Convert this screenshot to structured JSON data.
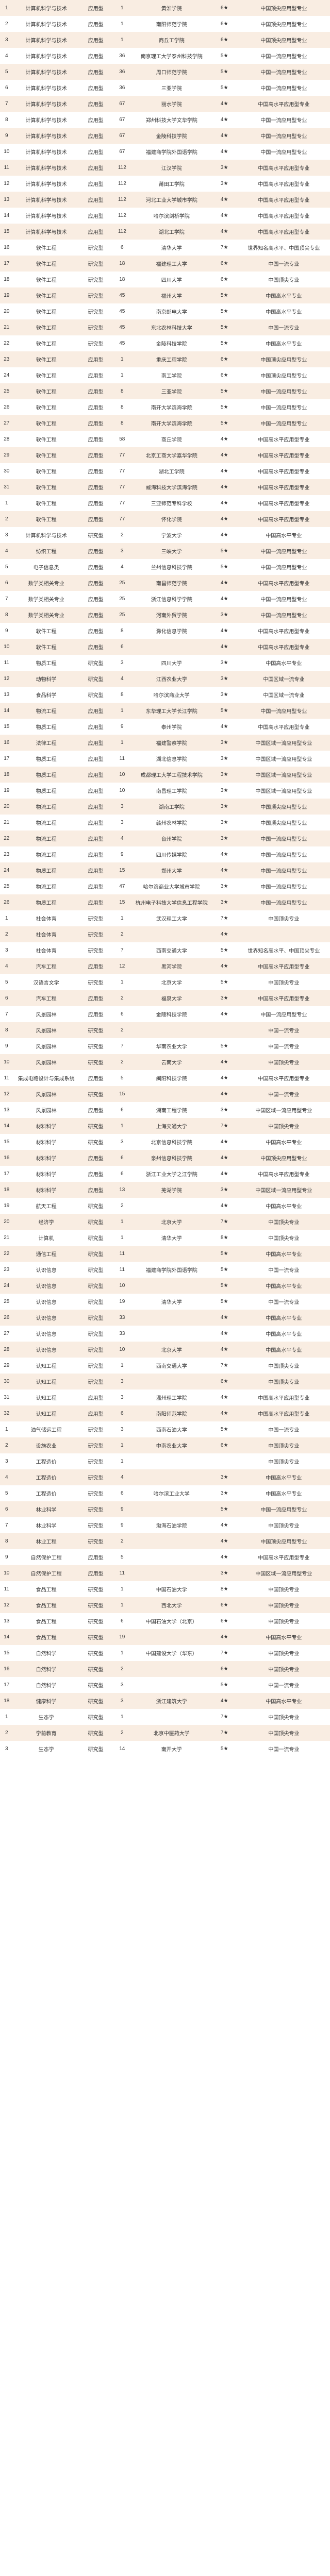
{
  "columns": [
    "idx",
    "major",
    "level",
    "rank",
    "school",
    "grade",
    "tier"
  ],
  "rows": [
    [
      "1",
      "计算机科学与技术",
      "应用型",
      "1",
      "黄淮学院",
      "6★",
      "中国顶尖应用型专业"
    ],
    [
      "2",
      "计算机科学与技术",
      "应用型",
      "1",
      "南阳师范学院",
      "6★",
      "中国顶尖应用型专业"
    ],
    [
      "3",
      "计算机科学与技术",
      "应用型",
      "1",
      "商丘工学院",
      "6★",
      "中国顶尖应用型专业"
    ],
    [
      "4",
      "计算机科学与技术",
      "应用型",
      "36",
      "南京理工大学泰州科技学院",
      "5★",
      "中国一流应用型专业"
    ],
    [
      "5",
      "计算机科学与技术",
      "应用型",
      "36",
      "周口师范学院",
      "5★",
      "中国一流应用型专业"
    ],
    [
      "6",
      "计算机科学与技术",
      "应用型",
      "36",
      "三亚学院",
      "5★",
      "中国一流应用型专业"
    ],
    [
      "7",
      "计算机科学与技术",
      "应用型",
      "67",
      "丽水学院",
      "4★",
      "中国高水平应用型专业"
    ],
    [
      "8",
      "计算机科学与技术",
      "应用型",
      "67",
      "郑州科技大学文华学院",
      "4★",
      "中国一流应用型专业"
    ],
    [
      "9",
      "计算机科学与技术",
      "应用型",
      "67",
      "金陵科技学院",
      "4★",
      "中国一流应用型专业"
    ],
    [
      "10",
      "计算机科学与技术",
      "应用型",
      "67",
      "福建商学院外国语学院",
      "4★",
      "中国一流应用型专业"
    ],
    [
      "11",
      "计算机科学与技术",
      "应用型",
      "112",
      "江汉学院",
      "3★",
      "中国高水平应用型专业"
    ],
    [
      "12",
      "计算机科学与技术",
      "应用型",
      "112",
      "莆田工学院",
      "3★",
      "中国高水平应用型专业"
    ],
    [
      "13",
      "计算机科学与技术",
      "应用型",
      "112",
      "河北工业大学城市学院",
      "4★",
      "中国高水平应用型专业"
    ],
    [
      "14",
      "计算机科学与技术",
      "应用型",
      "112",
      "哈尔滨剑桥学院",
      "4★",
      "中国高水平应用型专业"
    ],
    [
      "15",
      "计算机科学与技术",
      "应用型",
      "112",
      "湖北工学院",
      "4★",
      "中国高水平应用型专业"
    ],
    [
      "16",
      "软件工程",
      "研究型",
      "6",
      "清华大学",
      "7★",
      "世界知名高水平、中国顶尖专业"
    ],
    [
      "17",
      "软件工程",
      "研究型",
      "18",
      "福建理工大学",
      "6★",
      "中国一流专业"
    ],
    [
      "18",
      "软件工程",
      "研究型",
      "18",
      "四川大学",
      "6★",
      "中国顶尖专业"
    ],
    [
      "19",
      "软件工程",
      "研究型",
      "45",
      "福州大学",
      "5★",
      "中国高水平专业"
    ],
    [
      "20",
      "软件工程",
      "研究型",
      "45",
      "南京邮电大学",
      "5★",
      "中国高水平专业"
    ],
    [
      "21",
      "软件工程",
      "研究型",
      "45",
      "东北农林科技大学",
      "5★",
      "中国一流专业"
    ],
    [
      "22",
      "软件工程",
      "研究型",
      "45",
      "金陵科技学院",
      "5★",
      "中国高水平专业"
    ],
    [
      "23",
      "软件工程",
      "应用型",
      "1",
      "重庆工程学院",
      "6★",
      "中国顶尖应用型专业"
    ],
    [
      "24",
      "软件工程",
      "应用型",
      "1",
      "南工学院",
      "6★",
      "中国顶尖应用型专业"
    ],
    [
      "25",
      "软件工程",
      "应用型",
      "8",
      "三亚学院",
      "5★",
      "中国一流应用型专业"
    ],
    [
      "26",
      "软件工程",
      "应用型",
      "8",
      "南开大学滨海学院",
      "5★",
      "中国一流应用型专业"
    ],
    [
      "27",
      "软件工程",
      "应用型",
      "8",
      "南开大学滨海学院",
      "5★",
      "中国一流应用型专业"
    ],
    [
      "28",
      "软件工程",
      "应用型",
      "58",
      "商丘学院",
      "4★",
      "中国高水平应用型专业"
    ],
    [
      "29",
      "软件工程",
      "应用型",
      "77",
      "北京工商大学嘉华学院",
      "4★",
      "中国高水平应用型专业"
    ],
    [
      "30",
      "软件工程",
      "应用型",
      "77",
      "湖北工学院",
      "4★",
      "中国高水平应用型专业"
    ],
    [
      "31",
      "软件工程",
      "应用型",
      "77",
      "威海科技大学滨海学院",
      "4★",
      "中国高水平应用型专业"
    ],
    [
      "1",
      "软件工程",
      "应用型",
      "77",
      "三亚师范专科学校",
      "4★",
      "中国高水平应用型专业"
    ],
    [
      "2",
      "软件工程",
      "应用型",
      "77",
      "怀化学院",
      "4★",
      "中国高水平应用型专业"
    ],
    [
      "3",
      "计算机科学与技术",
      "研究型",
      "2",
      "宁波大学",
      "4★",
      "中国高水平专业"
    ],
    [
      "4",
      "纺织工程",
      "应用型",
      "3",
      "三峡大学",
      "5★",
      "中国一流应用型专业"
    ],
    [
      "5",
      "电子信息类",
      "应用型",
      "4",
      "兰州信息科技学院",
      "5★",
      "中国一流应用型专业"
    ],
    [
      "6",
      "数学类相关专业",
      "应用型",
      "25",
      "南昌师范学院",
      "4★",
      "中国高水平应用型专业"
    ],
    [
      "7",
      "数学类相关专业",
      "应用型",
      "25",
      "浙江信息科学学院",
      "4★",
      "中国一流应用型专业"
    ],
    [
      "8",
      "数学类相关专业",
      "应用型",
      "25",
      "河南外贸学院",
      "3★",
      "中国一流应用型专业"
    ],
    [
      "9",
      "软件工程",
      "应用型",
      "8",
      "滁化信息学院",
      "4★",
      "中国高水平应用型专业"
    ],
    [
      "10",
      "软件工程",
      "应用型",
      "6",
      "",
      "4★",
      "中国高水平应用型专业"
    ],
    [
      "11",
      "物质工程",
      "研究型",
      "3",
      "四川大学",
      "3★",
      "中国高水平专业"
    ],
    [
      "12",
      "动物科学",
      "研究型",
      "4",
      "江西农业大学",
      "3★",
      "中国区域一流专业"
    ],
    [
      "13",
      "食品科学",
      "研究型",
      "8",
      "哈尔滨商业大学",
      "3★",
      "中国区域一流专业"
    ],
    [
      "14",
      "物流工程",
      "应用型",
      "1",
      "东华理工大学长江学院",
      "5★",
      "中国一流应用型专业"
    ],
    [
      "15",
      "物质工程",
      "应用型",
      "9",
      "泰州学院",
      "4★",
      "中国高水平应用型专业"
    ],
    [
      "16",
      "法律工程",
      "应用型",
      "1",
      "福建警察学院",
      "3★",
      "中国区域一流应用型专业"
    ],
    [
      "17",
      "物质工程",
      "应用型",
      "11",
      "湖北信息学院",
      "3★",
      "中国区域一流应用型专业"
    ],
    [
      "18",
      "物质工程",
      "应用型",
      "10",
      "成都理工大学工程技术学院",
      "3★",
      "中国区域一流应用型专业"
    ],
    [
      "19",
      "物质工程",
      "应用型",
      "10",
      "南昌理工学院",
      "3★",
      "中国区域一流应用型专业"
    ],
    [
      "20",
      "物流工程",
      "应用型",
      "3",
      "湖南工学院",
      "3★",
      "中国顶尖应用型专业"
    ],
    [
      "21",
      "物流工程",
      "应用型",
      "3",
      "赣州农林学院",
      "3★",
      "中国顶尖应用型专业"
    ],
    [
      "22",
      "物流工程",
      "应用型",
      "4",
      "台州学院",
      "3★",
      "中国一流应用型专业"
    ],
    [
      "23",
      "物流工程",
      "应用型",
      "9",
      "四川传媒学院",
      "4★",
      "中国一流应用型专业"
    ],
    [
      "24",
      "物质工程",
      "应用型",
      "15",
      "郑州大学",
      "4★",
      "中国一流应用型专业"
    ],
    [
      "25",
      "物流工程",
      "应用型",
      "47",
      "哈尔滨商业大学城市学院",
      "3★",
      "中国一流应用型专业"
    ],
    [
      "26",
      "物质工程",
      "应用型",
      "15",
      "杭州电子科技大学信息工程学院",
      "3★",
      "中国一流应用型专业"
    ],
    [
      "1",
      "社会体育",
      "研究型",
      "1",
      "武汉理工大学",
      "7★",
      "中国顶尖专业"
    ],
    [
      "2",
      "社会体育",
      "研究型",
      "2",
      "",
      "4★",
      ""
    ],
    [
      "3",
      "社会体育",
      "研究型",
      "7",
      "西南交通大学",
      "5★",
      "世界知名高水平、中国顶尖专业"
    ],
    [
      "4",
      "汽车工程",
      "应用型",
      "12",
      "黑河学院",
      "4★",
      "中国高水平应用型专业"
    ],
    [
      "5",
      "汉语言文学",
      "研究型",
      "1",
      "北京大学",
      "5★",
      "中国顶尖专业"
    ],
    [
      "6",
      "汽车工程",
      "应用型",
      "2",
      "福泉大学",
      "3★",
      "中国高水平应用型专业"
    ],
    [
      "7",
      "风景园林",
      "应用型",
      "6",
      "金陵科技学院",
      "4★",
      "中国一流应用型专业"
    ],
    [
      "8",
      "风景园林",
      "研究型",
      "2",
      "",
      "",
      "中国一流专业"
    ],
    [
      "9",
      "风景园林",
      "研究型",
      "7",
      "华南农业大学",
      "5★",
      "中国一流专业"
    ],
    [
      "10",
      "风景园林",
      "研究型",
      "2",
      "云南大学",
      "4★",
      "中国顶尖专业"
    ],
    [
      "11",
      "集成电路设计与集成系统",
      "应用型",
      "5",
      "闽阳科技学院",
      "4★",
      "中国高水平应用型专业"
    ],
    [
      "12",
      "风景园林",
      "研究型",
      "15",
      "",
      "4★",
      "中国一流专业"
    ],
    [
      "13",
      "风景园林",
      "应用型",
      "6",
      "湖南工程学院",
      "3★",
      "中国区域一流应用型专业"
    ],
    [
      "14",
      "材料科学",
      "研究型",
      "1",
      "上海交通大学",
      "7★",
      "中国顶尖专业"
    ],
    [
      "15",
      "材料科学",
      "研究型",
      "3",
      "北京信息科技学院",
      "4★",
      "中国高水平专业"
    ],
    [
      "16",
      "材料科学",
      "应用型",
      "6",
      "泉州信息科技学院",
      "4★",
      "中国顶尖应用型专业"
    ],
    [
      "17",
      "材料科学",
      "应用型",
      "6",
      "浙江工业大学之江学院",
      "4★",
      "中国高水平应用型专业"
    ],
    [
      "18",
      "材料科学",
      "应用型",
      "13",
      "芜湖学院",
      "3★",
      "中国区域一流应用型专业"
    ],
    [
      "19",
      "航天工程",
      "研究型",
      "2",
      "",
      "4★",
      "中国高水平专业"
    ],
    [
      "20",
      "经济学",
      "研究型",
      "1",
      "北京大学",
      "7★",
      "中国顶尖专业"
    ],
    [
      "21",
      "计算机",
      "研究型",
      "1",
      "清华大学",
      "8★",
      "中国顶尖专业"
    ],
    [
      "22",
      "通信工程",
      "研究型",
      "11",
      "",
      "5★",
      "中国高水平专业"
    ],
    [
      "23",
      "认识信息",
      "研究型",
      "11",
      "福建商学院外国语学院",
      "5★",
      "中国一流专业"
    ],
    [
      "24",
      "认识信息",
      "研究型",
      "10",
      "",
      "5★",
      "中国高水平专业"
    ],
    [
      "25",
      "认识信息",
      "研究型",
      "19",
      "清华大学",
      "5★",
      "中国一流专业"
    ],
    [
      "26",
      "认识信息",
      "研究型",
      "33",
      "",
      "4★",
      "中国高水平专业"
    ],
    [
      "27",
      "认识信息",
      "研究型",
      "33",
      "",
      "4★",
      "中国高水平专业"
    ],
    [
      "28",
      "认识信息",
      "研究型",
      "10",
      "北京大学",
      "4★",
      "中国高水平专业"
    ],
    [
      "29",
      "认知工程",
      "研究型",
      "1",
      "西南交通大学",
      "7★",
      "中国顶尖专业"
    ],
    [
      "30",
      "认知工程",
      "研究型",
      "3",
      "",
      "6★",
      "中国顶尖专业"
    ],
    [
      "31",
      "认知工程",
      "应用型",
      "3",
      "温州理工学院",
      "4★",
      "中国高水平应用型专业"
    ],
    [
      "32",
      "认知工程",
      "应用型",
      "6",
      "南阳师范学院",
      "4★",
      "中国高水平应用型专业"
    ],
    [
      "1",
      "油气储运工程",
      "研究型",
      "3",
      "西南石油大学",
      "5★",
      "中国一流专业"
    ],
    [
      "2",
      "设施农业",
      "研究型",
      "1",
      "中南农业大学",
      "6★",
      "中国顶尖专业"
    ],
    [
      "3",
      "工程造价",
      "研究型",
      "1",
      "",
      "",
      "中国顶尖专业"
    ],
    [
      "4",
      "工程造价",
      "研究型",
      "4",
      "",
      "3★",
      "中国高水平专业"
    ],
    [
      "5",
      "工程造价",
      "研究型",
      "6",
      "哈尔滨工业大学",
      "3★",
      "中国高水平专业"
    ],
    [
      "6",
      "林业科学",
      "研究型",
      "9",
      "",
      "5★",
      "中国一流应用型专业"
    ],
    [
      "7",
      "林业科学",
      "研究型",
      "9",
      "渤海石油学院",
      "4★",
      "中国顶尖专业"
    ],
    [
      "8",
      "林业工程",
      "研究型",
      "2",
      "",
      "4★",
      "中国顶尖应用型专业"
    ],
    [
      "9",
      "自然保护工程",
      "应用型",
      "5",
      "",
      "4★",
      "中国高水平应用型专业"
    ],
    [
      "10",
      "自然保护工程",
      "应用型",
      "11",
      "",
      "3★",
      "中国区域一流应用型专业"
    ],
    [
      "11",
      "食品工程",
      "研究型",
      "1",
      "中国石油大学",
      "8★",
      "中国顶尖专业"
    ],
    [
      "12",
      "食品工程",
      "研究型",
      "1",
      "西北大学",
      "6★",
      "中国顶尖专业"
    ],
    [
      "13",
      "食品工程",
      "研究型",
      "6",
      "中国石油大学（北京）",
      "6★",
      "中国顶尖专业"
    ],
    [
      "14",
      "食品工程",
      "研究型",
      "19",
      "",
      "4★",
      "中国高水平专业"
    ],
    [
      "15",
      "自然科学",
      "研究型",
      "1",
      "中国建设大学（华东）",
      "7★",
      "中国顶尖专业"
    ],
    [
      "16",
      "自然科学",
      "研究型",
      "2",
      "",
      "6★",
      "中国顶尖专业"
    ],
    [
      "17",
      "自然科学",
      "研究型",
      "3",
      "",
      "5★",
      "中国一流专业"
    ],
    [
      "18",
      "健康科学",
      "研究型",
      "3",
      "浙江建筑大学",
      "4★",
      "中国高水平专业"
    ],
    [
      "1",
      "生态学",
      "研究型",
      "1",
      "",
      "7★",
      "中国顶尖专业"
    ],
    [
      "2",
      "学前教育",
      "研究型",
      "2",
      "北京中医药大学",
      "7★",
      "中国顶尖专业"
    ],
    [
      "3",
      "生态学",
      "研究型",
      "14",
      "南开大学",
      "5★",
      "中国一流专业"
    ]
  ]
}
